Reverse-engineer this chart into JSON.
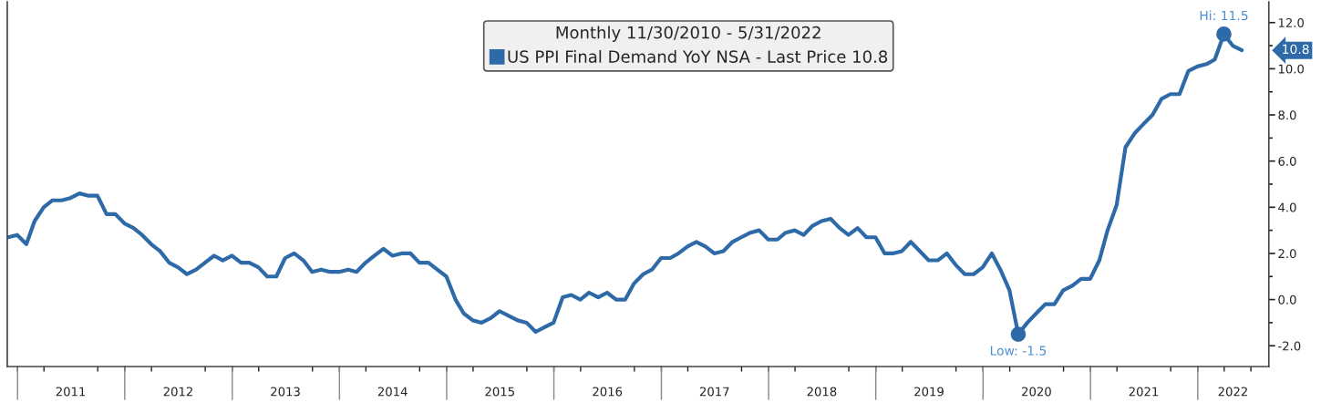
{
  "chart_data": {
    "type": "line",
    "legend_title": "Monthly 11/30/2010 - 5/31/2022",
    "legend": "top",
    "x": [
      "2010-11-30",
      "2010-12-31",
      "2011-01-31",
      "2011-02-28",
      "2011-03-31",
      "2011-04-30",
      "2011-05-31",
      "2011-06-30",
      "2011-07-31",
      "2011-08-31",
      "2011-09-30",
      "2011-10-31",
      "2011-11-30",
      "2011-12-31",
      "2012-01-31",
      "2012-02-29",
      "2012-03-31",
      "2012-04-30",
      "2012-05-31",
      "2012-06-30",
      "2012-07-31",
      "2012-08-31",
      "2012-09-30",
      "2012-10-31",
      "2012-11-30",
      "2012-12-31",
      "2013-01-31",
      "2013-02-28",
      "2013-03-31",
      "2013-04-30",
      "2013-05-31",
      "2013-06-30",
      "2013-07-31",
      "2013-08-31",
      "2013-09-30",
      "2013-10-31",
      "2013-11-30",
      "2013-12-31",
      "2014-01-31",
      "2014-02-28",
      "2014-03-31",
      "2014-04-30",
      "2014-05-31",
      "2014-06-30",
      "2014-07-31",
      "2014-08-31",
      "2014-09-30",
      "2014-10-31",
      "2014-11-30",
      "2014-12-31",
      "2015-01-31",
      "2015-02-28",
      "2015-03-31",
      "2015-04-30",
      "2015-05-31",
      "2015-06-30",
      "2015-07-31",
      "2015-08-31",
      "2015-09-30",
      "2015-10-31",
      "2015-11-30",
      "2015-12-31",
      "2016-01-31",
      "2016-02-29",
      "2016-03-31",
      "2016-04-30",
      "2016-05-31",
      "2016-06-30",
      "2016-07-31",
      "2016-08-31",
      "2016-09-30",
      "2016-10-31",
      "2016-11-30",
      "2016-12-31",
      "2017-01-31",
      "2017-02-28",
      "2017-03-31",
      "2017-04-30",
      "2017-05-31",
      "2017-06-30",
      "2017-07-31",
      "2017-08-31",
      "2017-09-30",
      "2017-10-31",
      "2017-11-30",
      "2017-12-31",
      "2018-01-31",
      "2018-02-28",
      "2018-03-31",
      "2018-04-30",
      "2018-05-31",
      "2018-06-30",
      "2018-07-31",
      "2018-08-31",
      "2018-09-30",
      "2018-10-31",
      "2018-11-30",
      "2018-12-31",
      "2019-01-31",
      "2019-02-28",
      "2019-03-31",
      "2019-04-30",
      "2019-05-31",
      "2019-06-30",
      "2019-07-31",
      "2019-08-31",
      "2019-09-30",
      "2019-10-31",
      "2019-11-30",
      "2019-12-31",
      "2020-01-31",
      "2020-02-29",
      "2020-03-31",
      "2020-04-30",
      "2020-05-31",
      "2020-06-30",
      "2020-07-31",
      "2020-08-31",
      "2020-09-30",
      "2020-10-31",
      "2020-11-30",
      "2020-12-31",
      "2021-01-31",
      "2021-02-28",
      "2021-03-31",
      "2021-04-30",
      "2021-05-31",
      "2021-06-30",
      "2021-07-31",
      "2021-08-31",
      "2021-09-30",
      "2021-10-31",
      "2021-11-30",
      "2021-12-31",
      "2022-01-31",
      "2022-02-28",
      "2022-03-31",
      "2022-04-30",
      "2022-05-31"
    ],
    "series": [
      {
        "name": "US PPI Final Demand YoY NSA - Last Price 10.8",
        "color": "#2e6aa8",
        "values": [
          2.7,
          2.8,
          2.4,
          3.4,
          4.0,
          4.3,
          4.3,
          4.4,
          4.6,
          4.5,
          4.5,
          3.7,
          3.7,
          3.3,
          3.1,
          2.8,
          2.4,
          2.1,
          1.6,
          1.4,
          1.1,
          1.3,
          1.6,
          1.9,
          1.7,
          1.9,
          1.6,
          1.6,
          1.4,
          1.0,
          1.0,
          1.8,
          2.0,
          1.7,
          1.2,
          1.3,
          1.2,
          1.2,
          1.3,
          1.2,
          1.6,
          1.9,
          2.2,
          1.9,
          2.0,
          2.0,
          1.6,
          1.6,
          1.3,
          1.0,
          0.0,
          -0.6,
          -0.9,
          -1.0,
          -0.8,
          -0.5,
          -0.7,
          -0.9,
          -1.0,
          -1.4,
          -1.2,
          -1.0,
          0.1,
          0.2,
          0.0,
          0.3,
          0.1,
          0.3,
          0.0,
          0.0,
          0.7,
          1.1,
          1.3,
          1.8,
          1.8,
          2.0,
          2.3,
          2.5,
          2.3,
          2.0,
          2.1,
          2.5,
          2.7,
          2.9,
          3.0,
          2.6,
          2.6,
          2.9,
          3.0,
          2.8,
          3.2,
          3.4,
          3.5,
          3.1,
          2.8,
          3.1,
          2.7,
          2.7,
          2.0,
          2.0,
          2.1,
          2.5,
          2.1,
          1.7,
          1.7,
          2.0,
          1.5,
          1.1,
          1.1,
          1.4,
          2.0,
          1.3,
          0.4,
          -1.5,
          -1.0,
          -0.6,
          -0.2,
          -0.2,
          0.4,
          0.6,
          0.9,
          0.9,
          1.7,
          3.0,
          4.1,
          6.6,
          7.2,
          7.6,
          8.0,
          8.7,
          8.9,
          8.9,
          9.9,
          10.1,
          10.2,
          10.4,
          11.5,
          11.0,
          10.8
        ]
      }
    ],
    "annotations": [
      {
        "text": "Hi: 11.5",
        "x": "2022-03-31",
        "y": 11.5
      },
      {
        "text": "Low: -1.5",
        "x": "2020-04-30",
        "y": -1.5
      },
      "10.8"
    ],
    "xlim": [
      "2010-11-27",
      "2022-08-31"
    ],
    "xticks": [
      {
        "value": "2011-01-01",
        "label": null
      },
      {
        "value": "2011-04-01",
        "label": null
      },
      {
        "value": "2011-07-01",
        "label": "2011"
      },
      {
        "value": "2011-10-01",
        "label": null
      },
      {
        "value": "2012-01-01",
        "label": null
      },
      {
        "value": "2012-04-01",
        "label": null
      },
      {
        "value": "2012-07-01",
        "label": "2012"
      },
      {
        "value": "2012-10-01",
        "label": null
      },
      {
        "value": "2013-01-01",
        "label": null
      },
      {
        "value": "2013-04-01",
        "label": null
      },
      {
        "value": "2013-07-01",
        "label": "2013"
      },
      {
        "value": "2013-10-01",
        "label": null
      },
      {
        "value": "2014-01-01",
        "label": null
      },
      {
        "value": "2014-04-01",
        "label": null
      },
      {
        "value": "2014-07-01",
        "label": "2014"
      },
      {
        "value": "2014-10-01",
        "label": null
      },
      {
        "value": "2015-01-01",
        "label": null
      },
      {
        "value": "2015-04-01",
        "label": null
      },
      {
        "value": "2015-07-01",
        "label": "2015"
      },
      {
        "value": "2015-10-01",
        "label": null
      },
      {
        "value": "2016-01-01",
        "label": null
      },
      {
        "value": "2016-04-01",
        "label": null
      },
      {
        "value": "2016-07-01",
        "label": "2016"
      },
      {
        "value": "2016-10-01",
        "label": null
      },
      {
        "value": "2017-01-01",
        "label": null
      },
      {
        "value": "2017-04-01",
        "label": null
      },
      {
        "value": "2017-07-01",
        "label": "2017"
      },
      {
        "value": "2017-10-01",
        "label": null
      },
      {
        "value": "2018-01-01",
        "label": null
      },
      {
        "value": "2018-04-01",
        "label": null
      },
      {
        "value": "2018-07-01",
        "label": "2018"
      },
      {
        "value": "2018-10-01",
        "label": null
      },
      {
        "value": "2019-01-01",
        "label": null
      },
      {
        "value": "2019-04-01",
        "label": null
      },
      {
        "value": "2019-07-01",
        "label": "2019"
      },
      {
        "value": "2019-10-01",
        "label": null
      },
      {
        "value": "2020-01-01",
        "label": null
      },
      {
        "value": "2020-04-01",
        "label": null
      },
      {
        "value": "2020-07-01",
        "label": "2020"
      },
      {
        "value": "2020-10-01",
        "label": null
      },
      {
        "value": "2021-01-01",
        "label": null
      },
      {
        "value": "2021-04-01",
        "label": null
      },
      {
        "value": "2021-07-01",
        "label": "2021"
      },
      {
        "value": "2021-10-01",
        "label": null
      },
      {
        "value": "2022-01-01",
        "label": null
      },
      {
        "value": "2022-04-01",
        "label": null
      },
      {
        "value": "2022-05-01",
        "label": "2022"
      },
      {
        "value": "2022-07-01",
        "label": null
      }
    ],
    "ylim": [
      -2.9,
      12.9
    ],
    "yticks": [
      {
        "value": -2,
        "label": "-2.0"
      },
      {
        "value": -1,
        "label": null
      },
      {
        "value": 0,
        "label": "0.0"
      },
      {
        "value": 1,
        "label": null
      },
      {
        "value": 2,
        "label": "2.0"
      },
      {
        "value": 3,
        "label": null
      },
      {
        "value": 4,
        "label": "4.0"
      },
      {
        "value": 5,
        "label": null
      },
      {
        "value": 6,
        "label": "6.0"
      },
      {
        "value": 7,
        "label": null
      },
      {
        "value": 8,
        "label": "8.0"
      },
      {
        "value": 9,
        "label": null
      },
      {
        "value": 10,
        "label": "10.0"
      },
      {
        "value": 11,
        "label": null
      },
      {
        "value": 12,
        "label": "12.0"
      }
    ],
    "grid": false,
    "marker": "none",
    "line_style": "solid"
  }
}
